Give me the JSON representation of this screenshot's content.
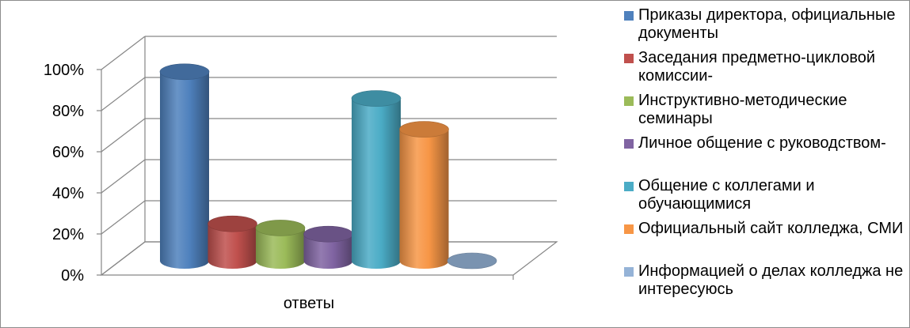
{
  "chart_data": {
    "type": "bar",
    "style": "3d-cylinder",
    "categories": [
      "ответы"
    ],
    "series": [
      {
        "name": "Приказы директора, официальные документы",
        "color": "#4F81BD",
        "values": [
          92
        ]
      },
      {
        "name": "Заседания предметно-цикловой комиссии-",
        "color": "#C0504D",
        "values": [
          18
        ]
      },
      {
        "name": "Инструктивно-методические семинары",
        "color": "#9BBB59",
        "values": [
          16
        ]
      },
      {
        "name": "Личное общение с руководством-",
        "color": "#8064A2",
        "values": [
          13
        ]
      },
      {
        "name": "Общение с коллегами и обучающимися",
        "color": "#4BACC6",
        "values": [
          79
        ]
      },
      {
        "name": "Официальный сайт колледжа, СМИ",
        "color": "#F79646",
        "values": [
          64
        ]
      },
      {
        "name": "Информацией о делах колледжа не интересуюсь",
        "color": "#95B3D7",
        "values": [
          0
        ]
      }
    ],
    "y_ticks": [
      "0%",
      "20%",
      "40%",
      "60%",
      "80%",
      "100%"
    ],
    "ylim": [
      0,
      100
    ],
    "grid": true,
    "legend_position": "right"
  }
}
